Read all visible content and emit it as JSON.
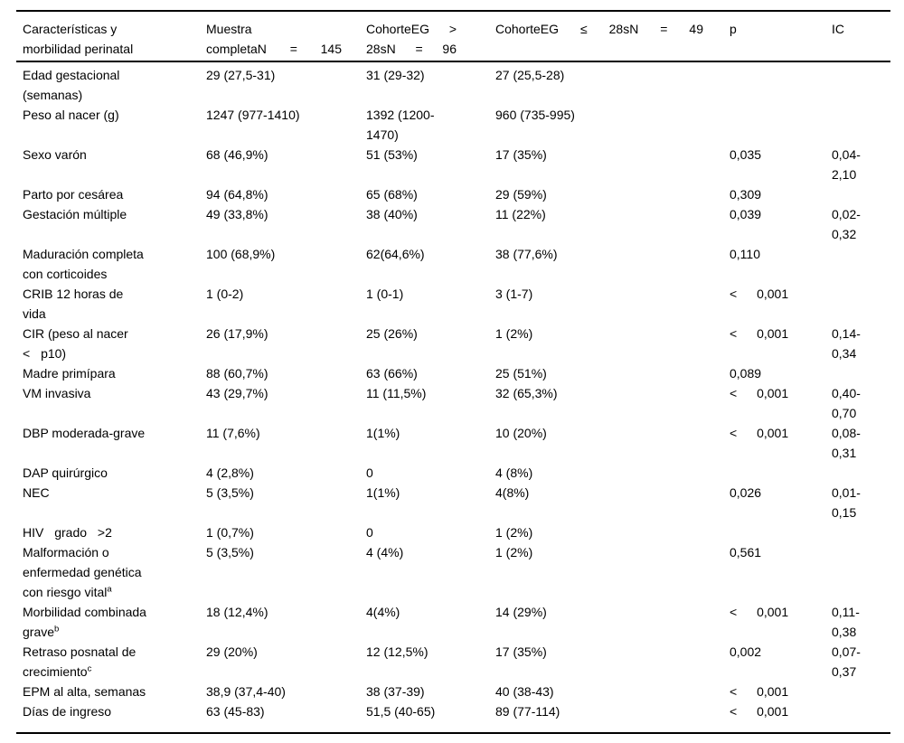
{
  "document": {
    "background_color": "#ffffff",
    "text_color": "#000000",
    "rule_color": "#000000"
  },
  "table": {
    "headers": [
      [
        "Características y",
        "morbilidad perinatal"
      ],
      [
        "Muestra",
        "completaN = 145"
      ],
      [
        "CohorteEG >",
        "28sN = 96"
      ],
      [
        "CohorteEG ≤ 28sN = 49"
      ],
      [
        "p"
      ],
      [
        "IC"
      ]
    ],
    "rows": [
      {
        "label_lines": [
          "Edad gestacional",
          "(semanas)"
        ],
        "muestra": "29 (27,5-31)",
        "cohorte_gt_28s": "31 (29-32)",
        "cohorte_le_28s": "27 (25,5-28)",
        "p": "",
        "ic": ""
      },
      {
        "label_lines": [
          "Peso al nacer (g)"
        ],
        "muestra": "1247 (977-1410)",
        "cohorte_gt_28s": "1392 (1200-1470)",
        "cohorte_le_28s": "960 (735-995)",
        "p": "",
        "ic": ""
      },
      {
        "label_lines": [
          "Sexo varón"
        ],
        "muestra": "68 (46,9%)",
        "cohorte_gt_28s": "51 (53%)",
        "cohorte_le_28s": "17 (35%)",
        "p": "0,035",
        "ic": "0,04-2,10"
      },
      {
        "label_lines": [
          "Parto por cesárea"
        ],
        "muestra": "94 (64,8%)",
        "cohorte_gt_28s": "65 (68%)",
        "cohorte_le_28s": "29 (59%)",
        "p": "0,309",
        "ic": ""
      },
      {
        "label_lines": [
          "Gestación múltiple"
        ],
        "muestra": "49 (33,8%)",
        "cohorte_gt_28s": "38 (40%)",
        "cohorte_le_28s": "11 (22%)",
        "p": "0,039",
        "ic": "0,02-0,32"
      },
      {
        "label_lines": [
          "Maduración completa",
          "con corticoides"
        ],
        "muestra": "100 (68,9%)",
        "cohorte_gt_28s": "62(64,6%)",
        "cohorte_le_28s": "38 (77,6%)",
        "p": "0,110",
        "ic": ""
      },
      {
        "label_lines": [
          "CRIB 12 horas de",
          "vida"
        ],
        "muestra": "1 (0-2)",
        "cohorte_gt_28s": "1 (0-1)",
        "cohorte_le_28s": "3 (1-7)",
        "p": "< 0,001",
        "ic": ""
      },
      {
        "label_lines": [
          "CIR (peso al nacer",
          "< p10)"
        ],
        "muestra": "26 (17,9%)",
        "cohorte_gt_28s": "25 (26%)",
        "cohorte_le_28s": "1 (2%)",
        "p": "< 0,001",
        "ic": "0,14-0,34"
      },
      {
        "label_lines": [
          "Madre primípara"
        ],
        "muestra": "88 (60,7%)",
        "cohorte_gt_28s": "63 (66%)",
        "cohorte_le_28s": "25 (51%)",
        "p": "0,089",
        "ic": ""
      },
      {
        "label_lines": [
          "VM invasiva"
        ],
        "muestra": "43 (29,7%)",
        "cohorte_gt_28s": "11 (11,5%)",
        "cohorte_le_28s": "32 (65,3%)",
        "p": "< 0,001",
        "ic": "0,40-0,70"
      },
      {
        "label_lines": [
          "DBP moderada-grave"
        ],
        "muestra": "11 (7,6%)",
        "cohorte_gt_28s": "1(1%)",
        "cohorte_le_28s": "10 (20%)",
        "p": "< 0,001",
        "ic": "0,08-0,31"
      },
      {
        "label_lines": [
          "DAP quirúrgico"
        ],
        "muestra": "4 (2,8%)",
        "cohorte_gt_28s": "0",
        "cohorte_le_28s": "4 (8%)",
        "p": "",
        "ic": ""
      },
      {
        "label_lines": [
          "NEC"
        ],
        "muestra": "5 (3,5%)",
        "cohorte_gt_28s": "1(1%)",
        "cohorte_le_28s": "4(8%)",
        "p": "0,026",
        "ic": "0,01-0,15"
      },
      {
        "label_lines": [
          "HIV grado >2"
        ],
        "muestra": "1 (0,7%)",
        "cohorte_gt_28s": "0",
        "cohorte_le_28s": "1 (2%)",
        "p": "",
        "ic": ""
      },
      {
        "label_lines": [
          "Malformación o",
          "enfermedad genética",
          "con riesgo vital"
        ],
        "label_sup": "a",
        "muestra": "5 (3,5%)",
        "cohorte_gt_28s": "4 (4%)",
        "cohorte_le_28s": "1 (2%)",
        "p": "0,561",
        "ic": ""
      },
      {
        "label_lines": [
          "Morbilidad combinada",
          "grave"
        ],
        "label_sup": "b",
        "muestra": "18 (12,4%)",
        "cohorte_gt_28s": "4(4%)",
        "cohorte_le_28s": "14 (29%)",
        "p": "< 0,001",
        "ic": "0,11-0,38"
      },
      {
        "label_lines": [
          "Retraso posnatal de",
          "crecimiento"
        ],
        "label_sup": "c",
        "muestra": "29 (20%)",
        "cohorte_gt_28s": "12 (12,5%)",
        "cohorte_le_28s": "17 (35%)",
        "p": "0,002",
        "ic": "0,07-0,37"
      },
      {
        "label_lines": [
          "EPM al alta, semanas"
        ],
        "muestra": "38,9 (37,4-40)",
        "cohorte_gt_28s": "38 (37-39)",
        "cohorte_le_28s": "40 (38-43)",
        "p": "< 0,001",
        "ic": ""
      },
      {
        "label_lines": [
          "Días de ingreso"
        ],
        "muestra": "63 (45-83)",
        "cohorte_gt_28s": "51,5 (40-65)",
        "cohorte_le_28s": "89 (77-114)",
        "p": "< 0,001",
        "ic": ""
      }
    ]
  }
}
